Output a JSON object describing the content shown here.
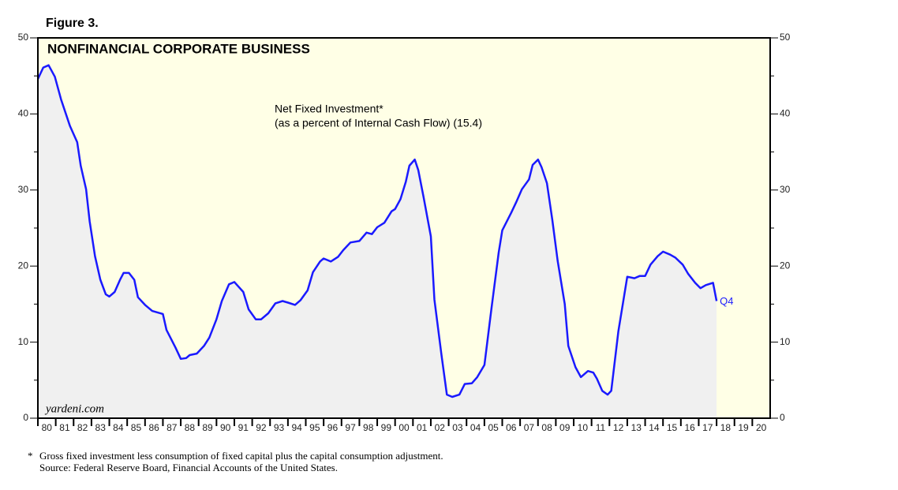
{
  "chart_data": {
    "type": "area-line",
    "figure_label": "Figure 3.",
    "title": "NONFINANCIAL CORPORATE BUSINESS",
    "annotation": [
      "Net Fixed Investment*",
      "(as a percent of Internal Cash Flow) (15.4)"
    ],
    "end_label": "Q4",
    "watermark": "yardeni.com",
    "footnote_marker": "*",
    "footnote": "Gross fixed investment less consumption of fixed capital plus the capital consumption adjustment.",
    "source": "Source: Federal Reserve Board, Financial Accounts of the United States.",
    "line_color": "#1a1aff",
    "fill_color": "#f0f0f0",
    "background_color": "#ffffe6",
    "xlim": [
      1980,
      2021
    ],
    "ylim": [
      0,
      50
    ],
    "yticks": [
      0,
      10,
      20,
      30,
      40,
      50
    ],
    "yminorticks": [
      5,
      15,
      25,
      35,
      45
    ],
    "xticks": [
      {
        "value": 1980,
        "label": "80"
      },
      {
        "value": 1981,
        "label": "81"
      },
      {
        "value": 1982,
        "label": "82"
      },
      {
        "value": 1983,
        "label": "83"
      },
      {
        "value": 1984,
        "label": "84"
      },
      {
        "value": 1985,
        "label": "85"
      },
      {
        "value": 1986,
        "label": "86"
      },
      {
        "value": 1987,
        "label": "87"
      },
      {
        "value": 1988,
        "label": "88"
      },
      {
        "value": 1989,
        "label": "89"
      },
      {
        "value": 1990,
        "label": "90"
      },
      {
        "value": 1991,
        "label": "91"
      },
      {
        "value": 1992,
        "label": "92"
      },
      {
        "value": 1993,
        "label": "93"
      },
      {
        "value": 1994,
        "label": "94"
      },
      {
        "value": 1995,
        "label": "95"
      },
      {
        "value": 1996,
        "label": "96"
      },
      {
        "value": 1997,
        "label": "97"
      },
      {
        "value": 1998,
        "label": "98"
      },
      {
        "value": 1999,
        "label": "99"
      },
      {
        "value": 2000,
        "label": "00"
      },
      {
        "value": 2001,
        "label": "01"
      },
      {
        "value": 2002,
        "label": "02"
      },
      {
        "value": 2003,
        "label": "03"
      },
      {
        "value": 2004,
        "label": "04"
      },
      {
        "value": 2005,
        "label": "05"
      },
      {
        "value": 2006,
        "label": "06"
      },
      {
        "value": 2007,
        "label": "07"
      },
      {
        "value": 2008,
        "label": "08"
      },
      {
        "value": 2009,
        "label": "09"
      },
      {
        "value": 2010,
        "label": "10"
      },
      {
        "value": 2011,
        "label": "11"
      },
      {
        "value": 2012,
        "label": "12"
      },
      {
        "value": 2013,
        "label": "13"
      },
      {
        "value": 2014,
        "label": "14"
      },
      {
        "value": 2015,
        "label": "15"
      },
      {
        "value": 2016,
        "label": "16"
      },
      {
        "value": 2017,
        "label": "17"
      },
      {
        "value": 2018,
        "label": "18"
      },
      {
        "value": 2019,
        "label": "19"
      },
      {
        "value": 2020,
        "label": "20"
      }
    ],
    "x": [
      1980.0,
      1980.3,
      1980.6,
      1980.95,
      1981.3,
      1981.8,
      1982.2,
      1982.4,
      1982.7,
      1982.9,
      1983.2,
      1983.5,
      1983.8,
      1984.0,
      1984.3,
      1984.6,
      1984.8,
      1985.1,
      1985.4,
      1985.6,
      1986.0,
      1986.4,
      1987.0,
      1987.2,
      1987.7,
      1988.0,
      1988.3,
      1988.5,
      1988.9,
      1989.3,
      1989.6,
      1990.0,
      1990.3,
      1990.7,
      1991.0,
      1991.5,
      1991.8,
      1992.2,
      1992.5,
      1992.9,
      1993.3,
      1993.7,
      1994.0,
      1994.4,
      1994.7,
      1995.1,
      1995.4,
      1995.8,
      1996.0,
      1996.4,
      1996.8,
      1997.1,
      1997.5,
      1998.0,
      1998.4,
      1998.7,
      1999.0,
      1999.4,
      1999.8,
      2000.0,
      2000.3,
      2000.6,
      2000.8,
      2001.1,
      2001.3,
      2001.6,
      2002.0,
      2002.2,
      2002.6,
      2002.9,
      2003.2,
      2003.6,
      2003.9,
      2004.3,
      2004.6,
      2005.0,
      2005.4,
      2005.8,
      2006.0,
      2006.5,
      2006.8,
      2007.1,
      2007.5,
      2007.7,
      2008.0,
      2008.2,
      2008.5,
      2008.8,
      2009.1,
      2009.5,
      2009.7,
      2010.1,
      2010.4,
      2010.8,
      2011.1,
      2011.3,
      2011.6,
      2011.9,
      2012.1,
      2012.5,
      2013.0,
      2013.4,
      2013.7,
      2014.0,
      2014.3,
      2014.7,
      2015.0,
      2015.4,
      2015.7,
      2016.1,
      2016.4,
      2016.8,
      2017.1,
      2017.4,
      2017.8,
      2018.0
    ],
    "values": [
      44.6,
      46.1,
      46.4,
      44.9,
      41.9,
      38.4,
      36.3,
      33.2,
      30.1,
      25.9,
      21.3,
      18.2,
      16.3,
      16.0,
      16.6,
      18.2,
      19.1,
      19.1,
      18.2,
      15.9,
      14.9,
      14.1,
      13.7,
      11.6,
      9.3,
      7.8,
      7.9,
      8.3,
      8.5,
      9.5,
      10.6,
      13.0,
      15.4,
      17.6,
      17.9,
      16.6,
      14.3,
      13.0,
      13.0,
      13.8,
      15.1,
      15.4,
      15.2,
      14.9,
      15.5,
      16.8,
      19.2,
      20.6,
      21.0,
      20.6,
      21.2,
      22.1,
      23.1,
      23.3,
      24.4,
      24.2,
      25.1,
      25.7,
      27.2,
      27.5,
      28.8,
      31.1,
      33.2,
      34.0,
      32.6,
      29.0,
      23.9,
      15.6,
      8.3,
      3.1,
      2.8,
      3.1,
      4.5,
      4.6,
      5.4,
      7.0,
      14.5,
      21.8,
      24.7,
      27.0,
      28.5,
      30.1,
      31.4,
      33.3,
      34.0,
      33.0,
      30.9,
      26.1,
      20.7,
      15.0,
      9.5,
      6.7,
      5.4,
      6.2,
      6.0,
      5.2,
      3.6,
      3.1,
      3.6,
      11.4,
      18.6,
      18.4,
      18.7,
      18.7,
      20.2,
      21.3,
      21.9,
      21.5,
      21.1,
      20.2,
      19.0,
      17.8,
      17.1,
      17.5,
      17.8,
      15.4
    ]
  }
}
